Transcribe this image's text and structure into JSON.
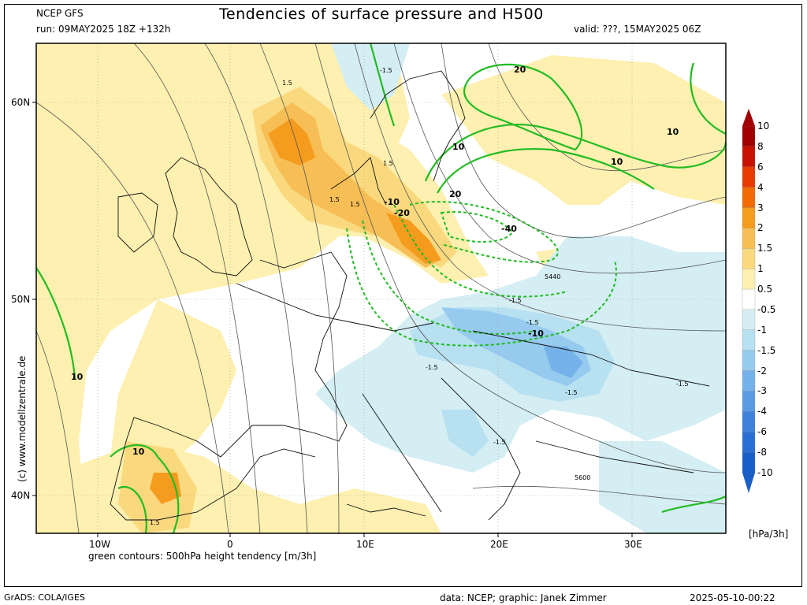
{
  "header": {
    "model": "NCEP GFS",
    "run": "run: 09MAY2025 18Z +132h",
    "title": "Tendencies of surface pressure and H500",
    "valid": "valid: ???, 15MAY2025 06Z"
  },
  "axes": {
    "lat_labels": [
      "60N",
      "50N",
      "40N"
    ],
    "lon_labels": [
      "10W",
      "0",
      "10E",
      "20E",
      "30E"
    ]
  },
  "watermark": "(c) www.modellzentrale.de",
  "footer": {
    "legend_note": "green contours: 500hPa height tendency [m/3h]",
    "grads": "GrADS: COLA/IGES",
    "credits": "data: NCEP; graphic: Janek Zimmer",
    "timestamp": "2025-05-10-00:22"
  },
  "colorbar": {
    "unit": "[hPa/3h]",
    "labels": [
      "10",
      "8",
      "6",
      "4",
      "3",
      "2",
      "1.5",
      "1",
      "0.5",
      "-0.5",
      "-1",
      "-1.5",
      "-2",
      "-3",
      "-4",
      "-6",
      "-8",
      "-10"
    ],
    "colors": [
      "#a00000",
      "#c81000",
      "#e83a00",
      "#f26a00",
      "#f59b1e",
      "#f7be55",
      "#fad97e",
      "#fdf0b0",
      "#ffffff",
      "#d4eef4",
      "#b7e0f0",
      "#96cbef",
      "#75b2ea",
      "#5b9be4",
      "#3f82dc",
      "#2a6fd6",
      "#1a5ec8"
    ]
  },
  "map_labels": {
    "green": [
      "20",
      "10",
      "20",
      "10",
      "-10",
      "-20",
      "-40",
      "-10",
      "10",
      "10",
      "10"
    ],
    "gray": [
      "1.5",
      "-1.5",
      "1.5",
      "1.5",
      "1.5",
      "-1.5",
      "-1.5",
      "-1.5",
      "-1.5",
      "-1.5",
      "-1.5",
      "1.5"
    ],
    "height": [
      "5440",
      "5600"
    ]
  },
  "colors": {
    "positive_tendency": "#f7be55",
    "negative_tendency": "#96cbef",
    "h500_contour": "#22bb22",
    "geopotential_line": "#555555"
  }
}
